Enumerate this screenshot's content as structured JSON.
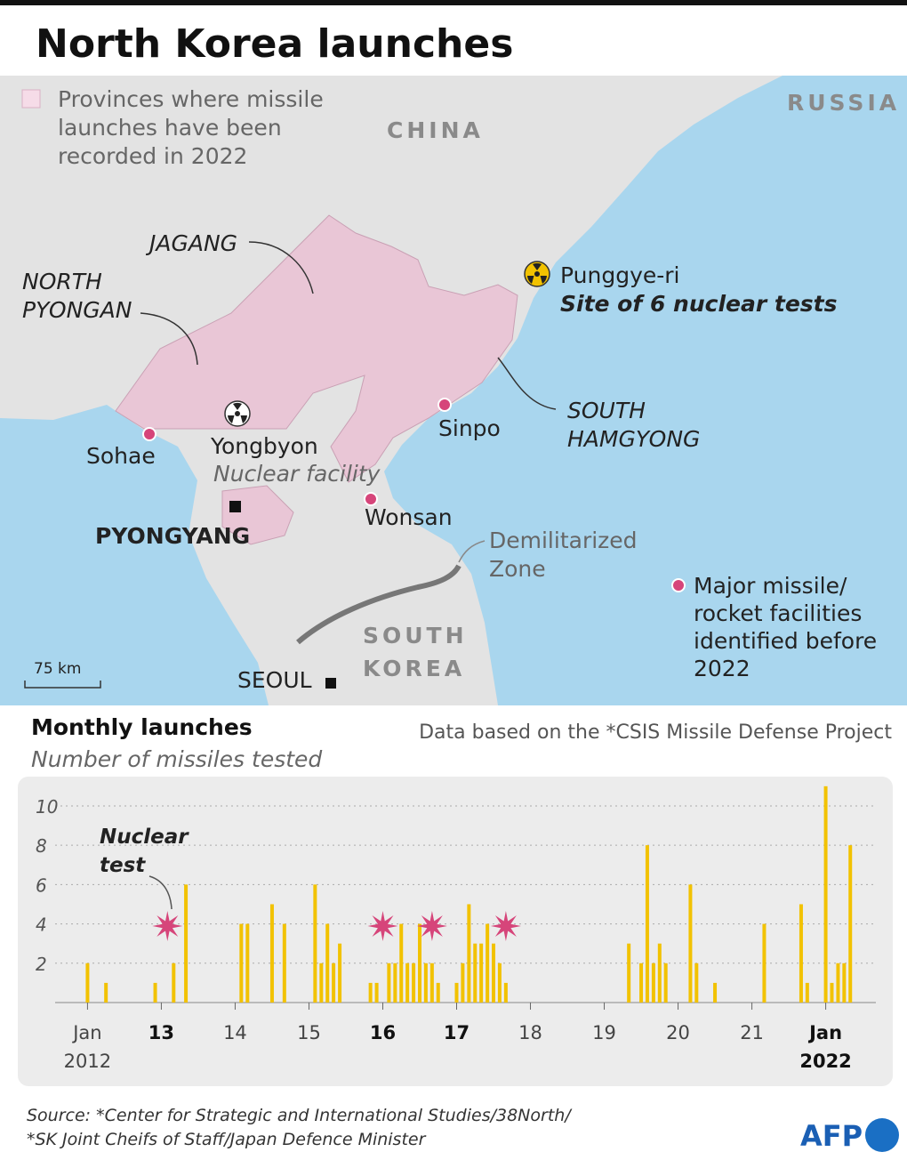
{
  "header": {
    "title": "North Korea launches"
  },
  "map": {
    "legend_provinces": [
      "Provinces where missile",
      "launches have been",
      "recorded in 2022"
    ],
    "china": "CHINA",
    "russia": "RUSSIA",
    "south_korea": [
      "SOUTH",
      "KOREA"
    ],
    "jagang": "JAGANG",
    "north_pyongan": [
      "NORTH",
      "PYONGAN"
    ],
    "south_hamgyong": [
      "SOUTH",
      "HAMGYONG"
    ],
    "punggye": "Punggye-ri",
    "punggye_note": "Site of 6 nuclear tests",
    "sinpo": "Sinpo",
    "sohae": "Sohae",
    "yongbyon": "Yongbyon",
    "yongbyon_note": "Nuclear facility",
    "wonsan": "Wonsan",
    "pyongyang": "PYONGYANG",
    "seoul": "SEOUL",
    "dmz": [
      "Demilitarized",
      "Zone"
    ],
    "legend_facilities": [
      "Major missile/",
      "rocket facilities",
      "identified before",
      "2022"
    ],
    "scale": "75 km"
  },
  "chart_data": {
    "type": "bar",
    "title": "Monthly launches",
    "subtitle": "Number of missiles tested",
    "note": "Data based on the *CSIS Missile Defense Project",
    "annotation": "Nuclear test",
    "x": [
      2012.0,
      2012.25,
      2012.917,
      2013.167,
      2013.333,
      2014.083,
      2014.167,
      2014.5,
      2014.667,
      2015.083,
      2015.167,
      2015.25,
      2015.333,
      2015.417,
      2015.833,
      2015.917,
      2016.083,
      2016.167,
      2016.25,
      2016.333,
      2016.417,
      2016.5,
      2016.583,
      2016.667,
      2016.75,
      2017.0,
      2017.083,
      2017.167,
      2017.25,
      2017.333,
      2017.417,
      2017.5,
      2017.583,
      2017.667,
      2019.333,
      2019.5,
      2019.583,
      2019.667,
      2019.75,
      2019.833,
      2020.167,
      2020.25,
      2020.5,
      2021.167,
      2021.667,
      2021.75,
      2022.0,
      2022.083,
      2022.167,
      2022.25,
      2022.333
    ],
    "values": [
      2,
      1,
      1,
      2,
      6,
      4,
      4,
      5,
      4,
      6,
      2,
      4,
      2,
      3,
      1,
      1,
      2,
      2,
      4,
      2,
      2,
      4,
      2,
      2,
      1,
      1,
      2,
      5,
      3,
      3,
      4,
      3,
      2,
      1,
      3,
      2,
      8,
      2,
      3,
      2,
      6,
      2,
      1,
      4,
      5,
      1,
      11,
      1,
      2,
      2,
      8
    ],
    "color": "#f2c200",
    "nuclear_tests": [
      2013.083,
      2016.0,
      2016.667,
      2017.667
    ],
    "nuclear_color": "#d6457a",
    "xlim": [
      2011.2,
      2022.8
    ],
    "xticks": [
      {
        "value": 2012,
        "label": "Jan 2012"
      },
      {
        "value": 2013,
        "label": "13",
        "bold": true
      },
      {
        "value": 2014,
        "label": "14"
      },
      {
        "value": 2015,
        "label": "15"
      },
      {
        "value": 2016,
        "label": "16",
        "bold": true
      },
      {
        "value": 2017,
        "label": "17",
        "bold": true
      },
      {
        "value": 2018,
        "label": "18"
      },
      {
        "value": 2019,
        "label": "19"
      },
      {
        "value": 2020,
        "label": "20"
      },
      {
        "value": 2021,
        "label": "21"
      },
      {
        "value": 2022,
        "label": "Jan 2022",
        "bold": true
      }
    ],
    "ylim": [
      0,
      11.4
    ],
    "yticks": [
      2,
      4,
      6,
      8,
      10
    ],
    "grid": true
  },
  "footer": {
    "source": [
      "Source: *Center for Strategic and International Studies/38North/",
      "*SK Joint Cheifs of Staff/Japan Defence Minister"
    ],
    "logo": "AFP"
  }
}
